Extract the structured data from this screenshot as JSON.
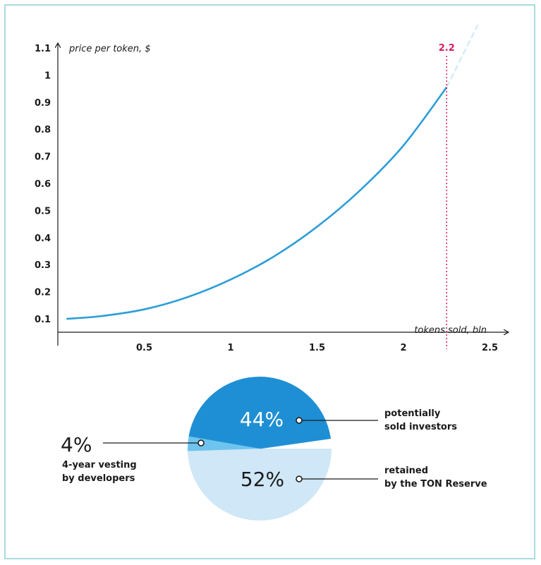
{
  "colors": {
    "curve": "#2d9ed6",
    "marker": "#d81b60",
    "frame": "#a8dcda",
    "pie_dark": "#1e8fd4",
    "pie_mid": "#6ec4ee",
    "pie_light": "#cfe7f6"
  },
  "chart_data": [
    {
      "type": "line",
      "ylabel": "price per token, $",
      "xlabel": "tokens sold, bln",
      "x_ticks": [
        "0.5",
        "1",
        "1.5",
        "2",
        "2.5"
      ],
      "y_ticks": [
        "0.1",
        "0.2",
        "0.3",
        "0.4",
        "0.5",
        "0.6",
        "0.7",
        "0.8",
        "0.9",
        "1",
        "1.1"
      ],
      "xlim": [
        0,
        2.5
      ],
      "ylim": [
        0.1,
        1.1
      ],
      "series": [
        {
          "x": [
            0.05,
            0.25,
            0.5,
            0.75,
            1.0,
            1.25,
            1.5,
            1.75,
            2.0,
            2.25
          ],
          "y": [
            0.1,
            0.11,
            0.135,
            0.18,
            0.245,
            0.33,
            0.44,
            0.575,
            0.74,
            0.955
          ]
        }
      ],
      "extension": {
        "x": [
          2.25,
          2.43
        ],
        "y": [
          0.955,
          1.185
        ]
      },
      "marker": {
        "x": 2.25,
        "label": "2.2"
      }
    },
    {
      "type": "pie",
      "slices": [
        {
          "label": "potentially sold investors",
          "value": 44,
          "display": "44%"
        },
        {
          "label": "retained by the TON Reserve",
          "value": 52,
          "display": "52%"
        },
        {
          "label": "4-year vesting by developers",
          "value": 4,
          "display": "4%"
        }
      ],
      "callouts": {
        "investors": [
          "potentially",
          "sold investors"
        ],
        "reserve": [
          "retained",
          "by the TON Reserve"
        ],
        "developers": [
          "4-year vesting",
          "by developers"
        ]
      }
    }
  ]
}
